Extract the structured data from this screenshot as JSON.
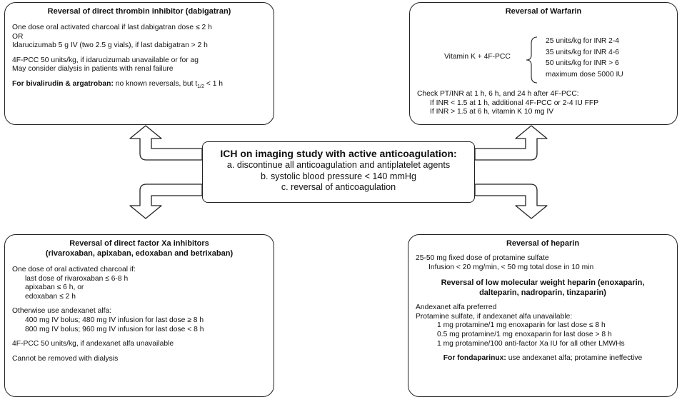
{
  "center": {
    "heading": "ICH on imaging study with active anticoagulation:",
    "lines": [
      "a. discontinue all anticoagulation and antiplatelet agents",
      "b. systolic blood pressure < 140 mmHg",
      "c. reversal of anticoagulation"
    ]
  },
  "dabigatran": {
    "title": "Reversal of direct thrombin inhibitor (dabigatran)",
    "l1": "One dose oral activated charcoal if last dabigatran dose ≤ 2 h",
    "l2": "OR",
    "l3": "Idarucizumab 5 g IV (two 2.5 g vials), if last dabigatran > 2 h",
    "l4": "4F-PCC 50 units/kg, if idarucizumab unavailable or for ag",
    "l5": "May consider dialysis in patients with renal failure",
    "biv_bold": "For bivalirudin & argatroban:",
    "biv_text": " no known reversals, but t",
    "biv_sub": "1/2",
    "biv_end": " < 1 h"
  },
  "warfarin": {
    "title": "Reversal of Warfarin",
    "combo": "Vitamin K  +  4F-PCC",
    "doses": [
      "25 units/kg for INR 2-4",
      "35 units/kg for INR 4-6",
      "50 units/kg for INR > 6",
      "maximum dose 5000 IU"
    ],
    "check": "Check PT/INR at 1 h, 6 h, and 24 h after 4F-PCC:",
    "c1": "If INR < 1.5 at 1 h, additional 4F-PCC or 2-4 IU FFP",
    "c2": "If INR > 1.5 at 6 h, vitamin K 10 mg IV"
  },
  "xa": {
    "title1": "Reversal of direct factor Xa inhibitors",
    "title2": "(rivaroxaban, apixaban, edoxaban and betrixaban)",
    "charcoal": "One dose of oral activated charcoal if:",
    "ch1": "last dose of rivaroxaban ≤ 6-8 h",
    "ch2": "apixaban ≤ 6 h, or",
    "ch3": "edoxaban ≤ 2 h",
    "otherwise": "Otherwise use andexanet alfa:",
    "a1": "400 mg IV bolus; 480 mg IV infusion for last dose ≥ 8 h",
    "a2": "800 mg IV bolus; 960 mg IV infusion for last dose < 8 h",
    "pcc": "4F-PCC 50 units/kg, if andexanet alfa unavailable",
    "dialysis": "Cannot be removed with dialysis"
  },
  "heparin": {
    "title": "Reversal of heparin",
    "p1": "25-50 mg fixed dose of protamine sulfate",
    "p2": "Infusion < 20 mg/min, < 50 mg total dose in 10 min",
    "lmwh1": "Reversal of low molecular weight heparin (enoxaparin,",
    "lmwh2": "dalteparin, nadroparin, tinzaparin)",
    "andex": "Andexanet alfa preferred",
    "prot": "Protamine sulfate, if andexanet alfa unavailable:",
    "e1": "1 mg protamine/1 mg enoxaparin for last dose ≤ 8 h",
    "e2": "0.5 mg protamine/1 mg enoxaparin for last dose > 8 h",
    "e3": "1 mg protamine/100 anti-factor Xa IU for all other LMWHs",
    "fonda_bold": "For fondaparinux:",
    "fonda_text": " use andexanet alfa; protamine ineffective"
  }
}
